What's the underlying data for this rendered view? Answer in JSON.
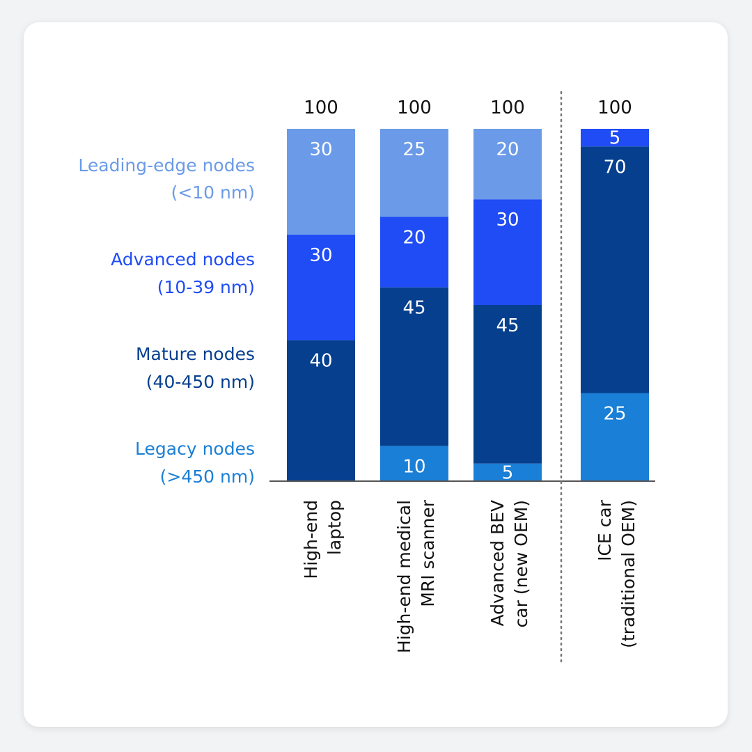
{
  "chart_data": {
    "type": "bar",
    "stacked": true,
    "categories": [
      [
        "High-end",
        "laptop"
      ],
      [
        "High-end medical",
        "MRI scanner"
      ],
      [
        "Advanced BEV",
        "car (new OEM)"
      ],
      [
        "ICE car",
        "(traditional OEM)"
      ]
    ],
    "totals": [
      "100",
      "100",
      "100",
      "100"
    ],
    "ylim": [
      0,
      100
    ],
    "grid": false,
    "separator_after_category": 3,
    "series": [
      {
        "name": [
          "Legacy nodes",
          "(>450 nm)"
        ],
        "color": "#1a7fd6",
        "values": [
          0,
          10,
          5,
          25
        ]
      },
      {
        "name": [
          "Mature nodes",
          "(40-450 nm)"
        ],
        "color": "#053f8e",
        "values": [
          40,
          45,
          45,
          70
        ]
      },
      {
        "name": [
          "Advanced nodes",
          "(10-39 nm)"
        ],
        "color": "#1f4cf5",
        "values": [
          30,
          20,
          30,
          5
        ]
      },
      {
        "name": [
          "Leading-edge nodes",
          "(<10 nm)"
        ],
        "color": "#6b9be8",
        "values": [
          30,
          25,
          20,
          0
        ]
      }
    ],
    "legend_placement": "left"
  },
  "colors": {
    "card_background": "#ffffff",
    "page_background": "#f2f3f5",
    "axis": "#555555",
    "text": "#111111",
    "bar_label": "#ffffff"
  }
}
